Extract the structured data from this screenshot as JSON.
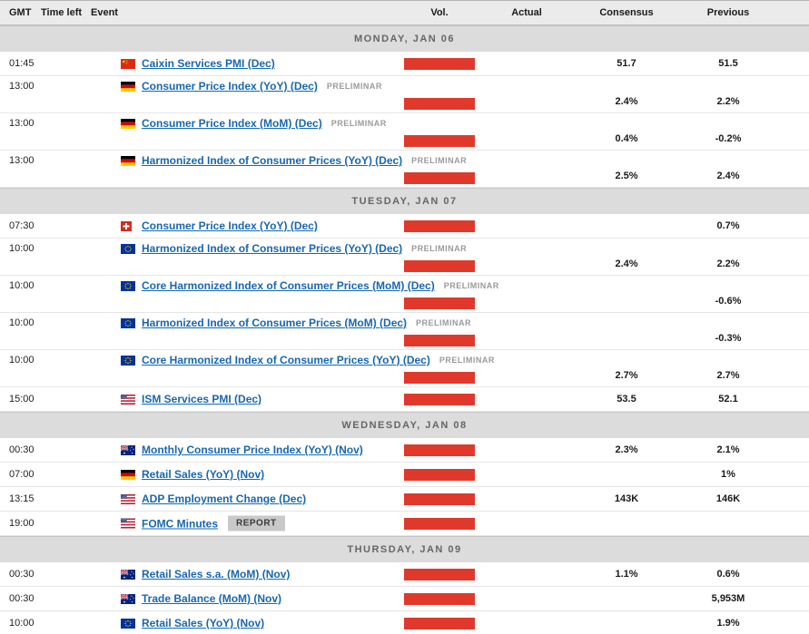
{
  "colors": {
    "volatility_high": "#e0392c",
    "link": "#1767b2",
    "header_bg": "#ebebeb",
    "day_banner_bg": "#dcdcdc",
    "tag_text": "#9a9a9a",
    "report_badge_bg": "#c9c9c9"
  },
  "header": {
    "columns": [
      {
        "key": "gmt",
        "label": "GMT"
      },
      {
        "key": "time-left",
        "label": "Time left"
      },
      {
        "key": "event",
        "label": "Event"
      },
      {
        "key": "vol",
        "label": "Vol."
      },
      {
        "key": "actual",
        "label": "Actual"
      },
      {
        "key": "consensus",
        "label": "Consensus"
      },
      {
        "key": "previous",
        "label": "Previous"
      }
    ]
  },
  "sections": [
    {
      "day": "MONDAY, JAN 06",
      "rows": [
        {
          "time": "01:45",
          "flag": "china",
          "event": "Caixin Services PMI (Dec)",
          "tag": "",
          "volatility": "high",
          "actual": "",
          "consensus": "51.7",
          "previous": "51.5",
          "tall": false
        },
        {
          "time": "13:00",
          "flag": "germany",
          "event": "Consumer Price Index (YoY) (Dec)",
          "tag": "PRELIMINAR",
          "volatility": "high",
          "actual": "",
          "consensus": "2.4%",
          "previous": "2.2%",
          "tall": true
        },
        {
          "time": "13:00",
          "flag": "germany",
          "event": "Consumer Price Index (MoM) (Dec)",
          "tag": "PRELIMINAR",
          "volatility": "high",
          "actual": "",
          "consensus": "0.4%",
          "previous": "-0.2%",
          "tall": true
        },
        {
          "time": "13:00",
          "flag": "germany",
          "event": "Harmonized Index of Consumer Prices (YoY) (Dec)",
          "tag": "PRELIMINAR",
          "volatility": "high",
          "actual": "",
          "consensus": "2.5%",
          "previous": "2.4%",
          "tall": true
        }
      ]
    },
    {
      "day": "TUESDAY, JAN 07",
      "rows": [
        {
          "time": "07:30",
          "flag": "switzerland",
          "event": "Consumer Price Index (YoY) (Dec)",
          "tag": "",
          "volatility": "high",
          "actual": "",
          "consensus": "",
          "previous": "0.7%",
          "tall": false
        },
        {
          "time": "10:00",
          "flag": "eu",
          "event": "Harmonized Index of Consumer Prices (YoY) (Dec)",
          "tag": "PRELIMINAR",
          "volatility": "high",
          "actual": "",
          "consensus": "2.4%",
          "previous": "2.2%",
          "tall": true
        },
        {
          "time": "10:00",
          "flag": "eu",
          "event": "Core Harmonized Index of Consumer Prices (MoM) (Dec)",
          "tag": "PRELIMINAR",
          "volatility": "high",
          "actual": "",
          "consensus": "",
          "previous": "-0.6%",
          "tall": true
        },
        {
          "time": "10:00",
          "flag": "eu",
          "event": "Harmonized Index of Consumer Prices (MoM) (Dec)",
          "tag": "PRELIMINAR",
          "volatility": "high",
          "actual": "",
          "consensus": "",
          "previous": "-0.3%",
          "tall": true
        },
        {
          "time": "10:00",
          "flag": "eu",
          "event": "Core Harmonized Index of Consumer Prices (YoY) (Dec)",
          "tag": "PRELIMINAR",
          "volatility": "high",
          "actual": "",
          "consensus": "2.7%",
          "previous": "2.7%",
          "tall": true
        },
        {
          "time": "15:00",
          "flag": "usa",
          "event": "ISM Services PMI (Dec)",
          "tag": "",
          "volatility": "high",
          "actual": "",
          "consensus": "53.5",
          "previous": "52.1",
          "tall": false
        }
      ]
    },
    {
      "day": "WEDNESDAY, JAN 08",
      "rows": [
        {
          "time": "00:30",
          "flag": "australia",
          "event": "Monthly Consumer Price Index (YoY) (Nov)",
          "tag": "",
          "volatility": "high",
          "actual": "",
          "consensus": "2.3%",
          "previous": "2.1%",
          "tall": false
        },
        {
          "time": "07:00",
          "flag": "germany",
          "event": "Retail Sales (YoY) (Nov)",
          "tag": "",
          "volatility": "high",
          "actual": "",
          "consensus": "",
          "previous": "1%",
          "tall": false
        },
        {
          "time": "13:15",
          "flag": "usa",
          "event": "ADP Employment Change (Dec)",
          "tag": "",
          "volatility": "high",
          "actual": "",
          "consensus": "143K",
          "previous": "146K",
          "tall": false
        },
        {
          "time": "19:00",
          "flag": "usa",
          "event": "FOMC Minutes",
          "tag": "REPORT",
          "volatility": "high",
          "actual": "",
          "consensus": "",
          "previous": "",
          "tall": false
        }
      ]
    },
    {
      "day": "THURSDAY, JAN 09",
      "rows": [
        {
          "time": "00:30",
          "flag": "australia",
          "event": "Retail Sales s.a. (MoM) (Nov)",
          "tag": "",
          "volatility": "high",
          "actual": "",
          "consensus": "1.1%",
          "previous": "0.6%",
          "tall": false
        },
        {
          "time": "00:30",
          "flag": "australia",
          "event": "Trade Balance (MoM) (Nov)",
          "tag": "",
          "volatility": "high",
          "actual": "",
          "consensus": "",
          "previous": "5,953M",
          "tall": false
        },
        {
          "time": "10:00",
          "flag": "eu",
          "event": "Retail Sales (YoY) (Nov)",
          "tag": "",
          "volatility": "high",
          "actual": "",
          "consensus": "",
          "previous": "1.9%",
          "tall": false
        }
      ]
    }
  ]
}
